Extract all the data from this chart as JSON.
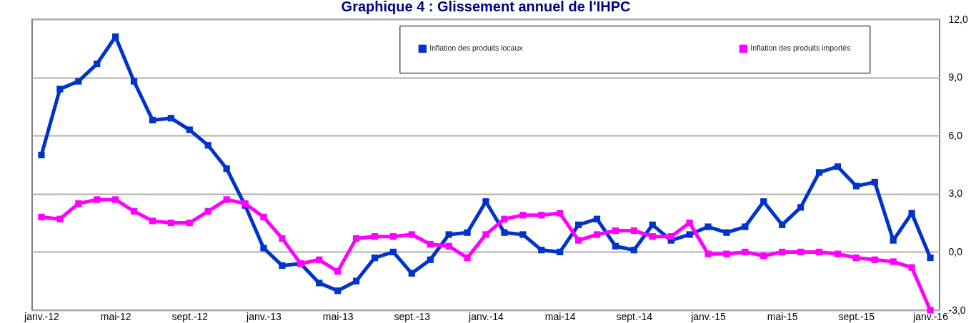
{
  "chart_data": {
    "type": "line",
    "title": "Graphique 4 : Glissement annuel de l'IHPC",
    "categories": [
      "janv.-12",
      null,
      null,
      null,
      "mai-12",
      null,
      null,
      null,
      "sept.-12",
      null,
      null,
      null,
      "janv.-13",
      null,
      null,
      null,
      "mai-13",
      null,
      null,
      null,
      "sept.-13",
      null,
      null,
      null,
      "janv.-14",
      null,
      null,
      null,
      "mai-14",
      null,
      null,
      null,
      "sept.-14",
      null,
      null,
      null,
      "janv.-15",
      null,
      null,
      null,
      "mai-15",
      null,
      null,
      null,
      "sept.-15",
      null,
      null,
      null,
      "janv.-16"
    ],
    "series": [
      {
        "name": "Inflation des produits locaux",
        "color": "#0033cc",
        "values": [
          5.0,
          8.4,
          8.8,
          9.7,
          11.1,
          8.8,
          6.8,
          6.9,
          6.3,
          5.5,
          4.3,
          2.4,
          0.2,
          -0.7,
          -0.6,
          -1.6,
          -2.0,
          -1.5,
          -0.3,
          0.0,
          -1.1,
          -0.4,
          0.9,
          1.0,
          2.6,
          1.0,
          0.9,
          0.1,
          0.0,
          1.4,
          1.7,
          0.3,
          0.1,
          1.4,
          0.6,
          0.9,
          1.3,
          1.0,
          1.3,
          2.6,
          1.4,
          2.3,
          4.1,
          4.4,
          3.4,
          3.6,
          0.6,
          2.0,
          -0.3
        ]
      },
      {
        "name": "Inflation des produits importés",
        "color": "#ff00ff",
        "values": [
          1.8,
          1.7,
          2.5,
          2.7,
          2.7,
          2.1,
          1.6,
          1.5,
          1.5,
          2.1,
          2.7,
          2.5,
          1.8,
          0.7,
          -0.6,
          -0.4,
          -1.0,
          0.7,
          0.8,
          0.8,
          0.9,
          0.4,
          0.3,
          -0.3,
          0.9,
          1.7,
          1.9,
          1.9,
          2.0,
          0.6,
          0.9,
          1.1,
          1.1,
          0.8,
          0.8,
          1.5,
          -0.1,
          -0.1,
          0.0,
          -0.2,
          0.0,
          0.0,
          0.0,
          -0.1,
          -0.3,
          -0.4,
          -0.5,
          -0.8,
          -3.0
        ]
      }
    ],
    "ylim": [
      -3,
      12
    ],
    "yticks": [
      {
        "value": -3,
        "label": "-3,0"
      },
      {
        "value": 0,
        "label": "0,0"
      },
      {
        "value": 3,
        "label": "3,0"
      },
      {
        "value": 6,
        "label": "6,0"
      },
      {
        "value": 9,
        "label": "9,0"
      },
      {
        "value": 12,
        "label": "12,0"
      }
    ],
    "grid": "y",
    "legend": "top right",
    "marker": "square",
    "line_style": "solid"
  }
}
